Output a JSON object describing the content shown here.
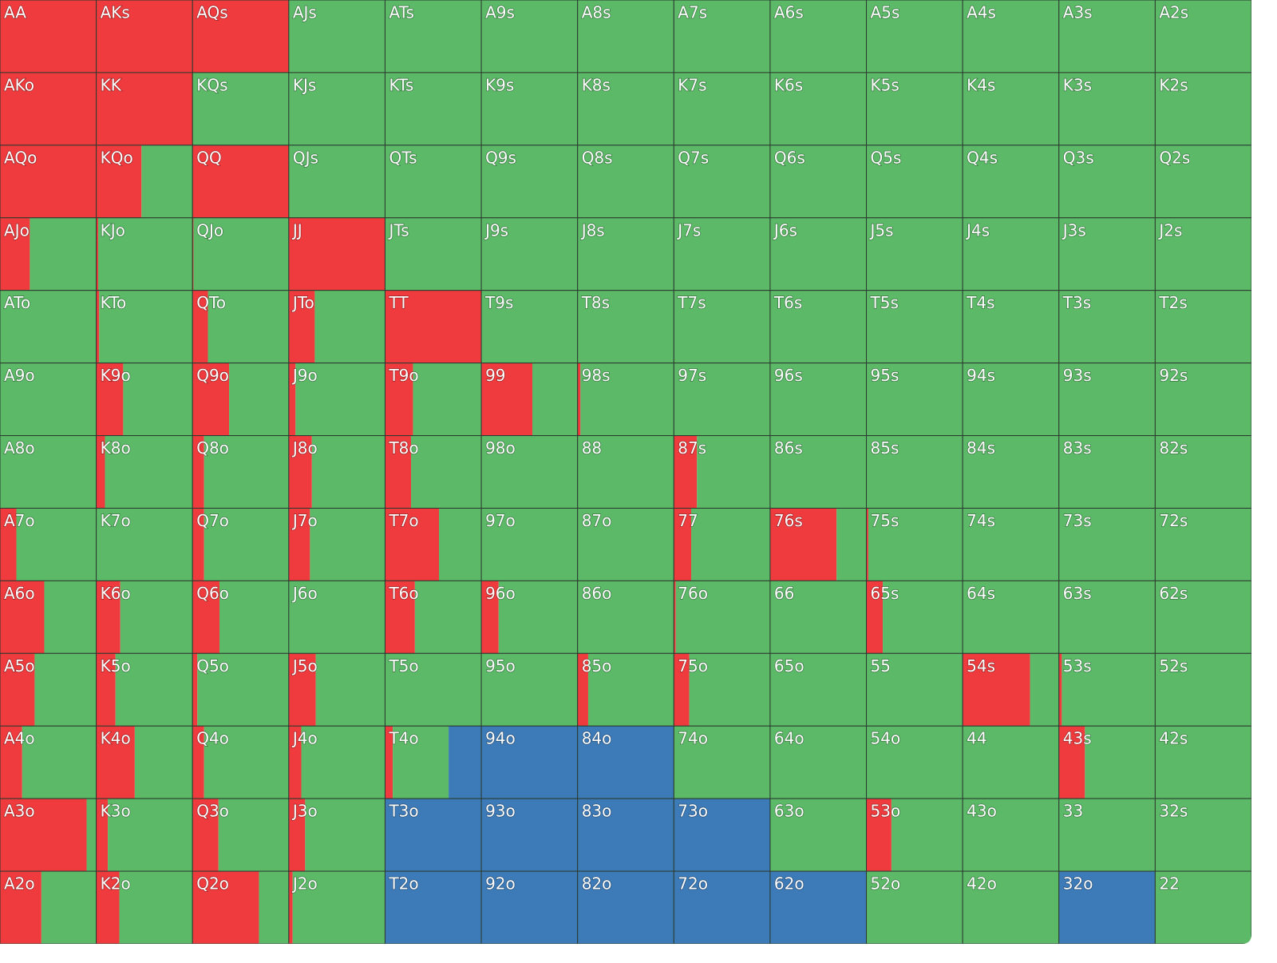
{
  "grid": {
    "colors": {
      "red": "#ef3b3e",
      "green": "#5cb968",
      "blue": "#3d7bb8"
    },
    "rows": [
      [
        {
          "label": "AA",
          "red": 100,
          "green": 0,
          "blue": 0
        },
        {
          "label": "AKs",
          "red": 100,
          "green": 0,
          "blue": 0
        },
        {
          "label": "AQs",
          "red": 100,
          "green": 0,
          "blue": 0
        },
        {
          "label": "AJs",
          "red": 0,
          "green": 100,
          "blue": 0
        },
        {
          "label": "ATs",
          "red": 0,
          "green": 100,
          "blue": 0
        },
        {
          "label": "A9s",
          "red": 0,
          "green": 100,
          "blue": 0
        },
        {
          "label": "A8s",
          "red": 0,
          "green": 100,
          "blue": 0
        },
        {
          "label": "A7s",
          "red": 0,
          "green": 100,
          "blue": 0
        },
        {
          "label": "A6s",
          "red": 0,
          "green": 100,
          "blue": 0
        },
        {
          "label": "A5s",
          "red": 0,
          "green": 100,
          "blue": 0
        },
        {
          "label": "A4s",
          "red": 0,
          "green": 100,
          "blue": 0
        },
        {
          "label": "A3s",
          "red": 0,
          "green": 100,
          "blue": 0
        },
        {
          "label": "A2s",
          "red": 0,
          "green": 100,
          "blue": 0
        }
      ],
      [
        {
          "label": "AKo",
          "red": 100,
          "green": 0,
          "blue": 0
        },
        {
          "label": "KK",
          "red": 100,
          "green": 0,
          "blue": 0
        },
        {
          "label": "KQs",
          "red": 0,
          "green": 100,
          "blue": 0
        },
        {
          "label": "KJs",
          "red": 0,
          "green": 100,
          "blue": 0
        },
        {
          "label": "KTs",
          "red": 0,
          "green": 100,
          "blue": 0
        },
        {
          "label": "K9s",
          "red": 0,
          "green": 100,
          "blue": 0
        },
        {
          "label": "K8s",
          "red": 0,
          "green": 100,
          "blue": 0
        },
        {
          "label": "K7s",
          "red": 0,
          "green": 100,
          "blue": 0
        },
        {
          "label": "K6s",
          "red": 0,
          "green": 100,
          "blue": 0
        },
        {
          "label": "K5s",
          "red": 0,
          "green": 100,
          "blue": 0
        },
        {
          "label": "K4s",
          "red": 0,
          "green": 100,
          "blue": 0
        },
        {
          "label": "K3s",
          "red": 0,
          "green": 100,
          "blue": 0
        },
        {
          "label": "K2s",
          "red": 0,
          "green": 100,
          "blue": 0
        }
      ],
      [
        {
          "label": "AQo",
          "red": 100,
          "green": 0,
          "blue": 0
        },
        {
          "label": "KQo",
          "red": 47,
          "green": 53,
          "blue": 0
        },
        {
          "label": "QQ",
          "red": 100,
          "green": 0,
          "blue": 0
        },
        {
          "label": "QJs",
          "red": 0,
          "green": 100,
          "blue": 0
        },
        {
          "label": "QTs",
          "red": 0,
          "green": 100,
          "blue": 0
        },
        {
          "label": "Q9s",
          "red": 0,
          "green": 100,
          "blue": 0
        },
        {
          "label": "Q8s",
          "red": 0,
          "green": 100,
          "blue": 0
        },
        {
          "label": "Q7s",
          "red": 0,
          "green": 100,
          "blue": 0
        },
        {
          "label": "Q6s",
          "red": 0,
          "green": 100,
          "blue": 0
        },
        {
          "label": "Q5s",
          "red": 0,
          "green": 100,
          "blue": 0
        },
        {
          "label": "Q4s",
          "red": 0,
          "green": 100,
          "blue": 0
        },
        {
          "label": "Q3s",
          "red": 0,
          "green": 100,
          "blue": 0
        },
        {
          "label": "Q2s",
          "red": 0,
          "green": 100,
          "blue": 0
        }
      ],
      [
        {
          "label": "AJo",
          "red": 31,
          "green": 69,
          "blue": 0
        },
        {
          "label": "KJo",
          "red": 2,
          "green": 98,
          "blue": 0
        },
        {
          "label": "QJo",
          "red": 1,
          "green": 99,
          "blue": 0
        },
        {
          "label": "JJ",
          "red": 100,
          "green": 0,
          "blue": 0
        },
        {
          "label": "JTs",
          "red": 0,
          "green": 100,
          "blue": 0
        },
        {
          "label": "J9s",
          "red": 0,
          "green": 100,
          "blue": 0
        },
        {
          "label": "J8s",
          "red": 0,
          "green": 100,
          "blue": 0
        },
        {
          "label": "J7s",
          "red": 0,
          "green": 100,
          "blue": 0
        },
        {
          "label": "J6s",
          "red": 0,
          "green": 100,
          "blue": 0
        },
        {
          "label": "J5s",
          "red": 0,
          "green": 100,
          "blue": 0
        },
        {
          "label": "J4s",
          "red": 0,
          "green": 100,
          "blue": 0
        },
        {
          "label": "J3s",
          "red": 0,
          "green": 100,
          "blue": 0
        },
        {
          "label": "J2s",
          "red": 0,
          "green": 100,
          "blue": 0
        }
      ],
      [
        {
          "label": "ATo",
          "red": 0,
          "green": 100,
          "blue": 0
        },
        {
          "label": "KTo",
          "red": 3,
          "green": 97,
          "blue": 0
        },
        {
          "label": "QTo",
          "red": 16,
          "green": 84,
          "blue": 0
        },
        {
          "label": "JTo",
          "red": 27,
          "green": 73,
          "blue": 0
        },
        {
          "label": "TT",
          "red": 100,
          "green": 0,
          "blue": 0
        },
        {
          "label": "T9s",
          "red": 0,
          "green": 100,
          "blue": 0
        },
        {
          "label": "T8s",
          "red": 0,
          "green": 100,
          "blue": 0
        },
        {
          "label": "T7s",
          "red": 0,
          "green": 100,
          "blue": 0
        },
        {
          "label": "T6s",
          "red": 0,
          "green": 100,
          "blue": 0
        },
        {
          "label": "T5s",
          "red": 0,
          "green": 100,
          "blue": 0
        },
        {
          "label": "T4s",
          "red": 0,
          "green": 100,
          "blue": 0
        },
        {
          "label": "T3s",
          "red": 0,
          "green": 100,
          "blue": 0
        },
        {
          "label": "T2s",
          "red": 0,
          "green": 100,
          "blue": 0
        }
      ],
      [
        {
          "label": "A9o",
          "red": 0,
          "green": 100,
          "blue": 0
        },
        {
          "label": "K9o",
          "red": 28,
          "green": 72,
          "blue": 0
        },
        {
          "label": "Q9o",
          "red": 38,
          "green": 62,
          "blue": 0
        },
        {
          "label": "J9o",
          "red": 7,
          "green": 93,
          "blue": 0
        },
        {
          "label": "T9o",
          "red": 29,
          "green": 71,
          "blue": 0
        },
        {
          "label": "99",
          "red": 53,
          "green": 47,
          "blue": 0
        },
        {
          "label": "98s",
          "red": 3,
          "green": 97,
          "blue": 0
        },
        {
          "label": "97s",
          "red": 0,
          "green": 100,
          "blue": 0
        },
        {
          "label": "96s",
          "red": 0,
          "green": 100,
          "blue": 0
        },
        {
          "label": "95s",
          "red": 0,
          "green": 100,
          "blue": 0
        },
        {
          "label": "94s",
          "red": 0,
          "green": 100,
          "blue": 0
        },
        {
          "label": "93s",
          "red": 0,
          "green": 100,
          "blue": 0
        },
        {
          "label": "92s",
          "red": 0,
          "green": 100,
          "blue": 0
        }
      ],
      [
        {
          "label": "A8o",
          "red": 0,
          "green": 100,
          "blue": 0
        },
        {
          "label": "K8o",
          "red": 9,
          "green": 91,
          "blue": 0
        },
        {
          "label": "Q8o",
          "red": 12,
          "green": 88,
          "blue": 0
        },
        {
          "label": "J8o",
          "red": 24,
          "green": 76,
          "blue": 0
        },
        {
          "label": "T8o",
          "red": 27,
          "green": 73,
          "blue": 0
        },
        {
          "label": "98o",
          "red": 0,
          "green": 100,
          "blue": 0
        },
        {
          "label": "88",
          "red": 0,
          "green": 100,
          "blue": 0
        },
        {
          "label": "87s",
          "red": 24,
          "green": 76,
          "blue": 0
        },
        {
          "label": "86s",
          "red": 0,
          "green": 100,
          "blue": 0
        },
        {
          "label": "85s",
          "red": 0,
          "green": 100,
          "blue": 0
        },
        {
          "label": "84s",
          "red": 0,
          "green": 100,
          "blue": 0
        },
        {
          "label": "83s",
          "red": 0,
          "green": 100,
          "blue": 0
        },
        {
          "label": "82s",
          "red": 0,
          "green": 100,
          "blue": 0
        }
      ],
      [
        {
          "label": "A7o",
          "red": 17,
          "green": 83,
          "blue": 0
        },
        {
          "label": "K7o",
          "red": 0,
          "green": 100,
          "blue": 0
        },
        {
          "label": "Q7o",
          "red": 12,
          "green": 88,
          "blue": 0
        },
        {
          "label": "J7o",
          "red": 22,
          "green": 78,
          "blue": 0
        },
        {
          "label": "T7o",
          "red": 56,
          "green": 44,
          "blue": 0
        },
        {
          "label": "97o",
          "red": 0,
          "green": 100,
          "blue": 0
        },
        {
          "label": "87o",
          "red": 0,
          "green": 100,
          "blue": 0
        },
        {
          "label": "77",
          "red": 18,
          "green": 82,
          "blue": 0
        },
        {
          "label": "76s",
          "red": 69,
          "green": 31,
          "blue": 0
        },
        {
          "label": "75s",
          "red": 2,
          "green": 98,
          "blue": 0
        },
        {
          "label": "74s",
          "red": 0,
          "green": 100,
          "blue": 0
        },
        {
          "label": "73s",
          "red": 0,
          "green": 100,
          "blue": 0
        },
        {
          "label": "72s",
          "red": 0,
          "green": 100,
          "blue": 0
        }
      ],
      [
        {
          "label": "A6o",
          "red": 46,
          "green": 54,
          "blue": 0
        },
        {
          "label": "K6o",
          "red": 25,
          "green": 75,
          "blue": 0
        },
        {
          "label": "Q6o",
          "red": 28,
          "green": 72,
          "blue": 0
        },
        {
          "label": "J6o",
          "red": 0,
          "green": 100,
          "blue": 0
        },
        {
          "label": "T6o",
          "red": 31,
          "green": 69,
          "blue": 0
        },
        {
          "label": "96o",
          "red": 18,
          "green": 82,
          "blue": 0
        },
        {
          "label": "86o",
          "red": 0,
          "green": 100,
          "blue": 0
        },
        {
          "label": "76o",
          "red": 2,
          "green": 98,
          "blue": 0
        },
        {
          "label": "66",
          "red": 0,
          "green": 100,
          "blue": 0
        },
        {
          "label": "65s",
          "red": 17,
          "green": 83,
          "blue": 0
        },
        {
          "label": "64s",
          "red": 0,
          "green": 100,
          "blue": 0
        },
        {
          "label": "63s",
          "red": 0,
          "green": 100,
          "blue": 0
        },
        {
          "label": "62s",
          "red": 0,
          "green": 100,
          "blue": 0
        }
      ],
      [
        {
          "label": "A5o",
          "red": 36,
          "green": 64,
          "blue": 0
        },
        {
          "label": "K5o",
          "red": 20,
          "green": 80,
          "blue": 0
        },
        {
          "label": "Q5o",
          "red": 5,
          "green": 95,
          "blue": 0
        },
        {
          "label": "J5o",
          "red": 28,
          "green": 72,
          "blue": 0
        },
        {
          "label": "T5o",
          "red": 0,
          "green": 100,
          "blue": 0
        },
        {
          "label": "95o",
          "red": 0,
          "green": 100,
          "blue": 0
        },
        {
          "label": "85o",
          "red": 11,
          "green": 89,
          "blue": 0
        },
        {
          "label": "75o",
          "red": 16,
          "green": 84,
          "blue": 0
        },
        {
          "label": "65o",
          "red": 0,
          "green": 100,
          "blue": 0
        },
        {
          "label": "55",
          "red": 0,
          "green": 100,
          "blue": 0
        },
        {
          "label": "54s",
          "red": 70,
          "green": 30,
          "blue": 0
        },
        {
          "label": "53s",
          "red": 3,
          "green": 97,
          "blue": 0
        },
        {
          "label": "52s",
          "red": 0,
          "green": 100,
          "blue": 0
        }
      ],
      [
        {
          "label": "A4o",
          "red": 23,
          "green": 77,
          "blue": 0
        },
        {
          "label": "K4o",
          "red": 40,
          "green": 60,
          "blue": 0
        },
        {
          "label": "Q4o",
          "red": 12,
          "green": 88,
          "blue": 0
        },
        {
          "label": "J4o",
          "red": 13,
          "green": 87,
          "blue": 0
        },
        {
          "label": "T4o",
          "red": 8,
          "green": 58,
          "blue": 34
        },
        {
          "label": "94o",
          "red": 0,
          "green": 0,
          "blue": 100
        },
        {
          "label": "84o",
          "red": 0,
          "green": 0,
          "blue": 100
        },
        {
          "label": "74o",
          "red": 0,
          "green": 100,
          "blue": 0
        },
        {
          "label": "64o",
          "red": 0,
          "green": 100,
          "blue": 0
        },
        {
          "label": "54o",
          "red": 0,
          "green": 100,
          "blue": 0
        },
        {
          "label": "44",
          "red": 0,
          "green": 100,
          "blue": 0
        },
        {
          "label": "43s",
          "red": 27,
          "green": 73,
          "blue": 0
        },
        {
          "label": "42s",
          "red": 0,
          "green": 100,
          "blue": 0
        }
      ],
      [
        {
          "label": "A3o",
          "red": 90,
          "green": 10,
          "blue": 0
        },
        {
          "label": "K3o",
          "red": 12,
          "green": 88,
          "blue": 0
        },
        {
          "label": "Q3o",
          "red": 27,
          "green": 73,
          "blue": 0
        },
        {
          "label": "J3o",
          "red": 17,
          "green": 83,
          "blue": 0
        },
        {
          "label": "T3o",
          "red": 0,
          "green": 0,
          "blue": 100
        },
        {
          "label": "93o",
          "red": 0,
          "green": 0,
          "blue": 100
        },
        {
          "label": "83o",
          "red": 0,
          "green": 0,
          "blue": 100
        },
        {
          "label": "73o",
          "red": 0,
          "green": 0,
          "blue": 100
        },
        {
          "label": "63o",
          "red": 0,
          "green": 100,
          "blue": 0
        },
        {
          "label": "53o",
          "red": 26,
          "green": 74,
          "blue": 0
        },
        {
          "label": "43o",
          "red": 0,
          "green": 100,
          "blue": 0
        },
        {
          "label": "33",
          "red": 0,
          "green": 100,
          "blue": 0
        },
        {
          "label": "32s",
          "red": 0,
          "green": 100,
          "blue": 0
        }
      ],
      [
        {
          "label": "A2o",
          "red": 43,
          "green": 57,
          "blue": 0
        },
        {
          "label": "K2o",
          "red": 24,
          "green": 76,
          "blue": 0
        },
        {
          "label": "Q2o",
          "red": 69,
          "green": 31,
          "blue": 0
        },
        {
          "label": "J2o",
          "red": 4,
          "green": 96,
          "blue": 0
        },
        {
          "label": "T2o",
          "red": 0,
          "green": 0,
          "blue": 100
        },
        {
          "label": "92o",
          "red": 0,
          "green": 0,
          "blue": 100
        },
        {
          "label": "82o",
          "red": 0,
          "green": 0,
          "blue": 100
        },
        {
          "label": "72o",
          "red": 0,
          "green": 0,
          "blue": 100
        },
        {
          "label": "62o",
          "red": 0,
          "green": 0,
          "blue": 100
        },
        {
          "label": "52o",
          "red": 0,
          "green": 100,
          "blue": 0
        },
        {
          "label": "42o",
          "red": 0,
          "green": 100,
          "blue": 0
        },
        {
          "label": "32o",
          "red": 0,
          "green": 0,
          "blue": 100
        },
        {
          "label": "22",
          "red": 0,
          "green": 100,
          "blue": 0
        }
      ]
    ]
  }
}
